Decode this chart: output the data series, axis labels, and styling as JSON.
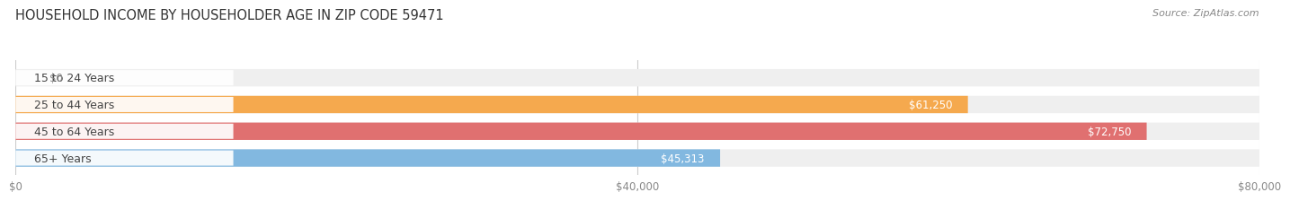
{
  "title": "HOUSEHOLD INCOME BY HOUSEHOLDER AGE IN ZIP CODE 59471",
  "source": "Source: ZipAtlas.com",
  "categories": [
    "15 to 24 Years",
    "25 to 44 Years",
    "45 to 64 Years",
    "65+ Years"
  ],
  "values": [
    0,
    61250,
    72750,
    45313
  ],
  "bar_colors": [
    "#f4a0b0",
    "#f5a94e",
    "#e07070",
    "#82b8e0"
  ],
  "bar_bg_color": "#efefef",
  "xlim": [
    0,
    80000
  ],
  "xticks": [
    0,
    40000,
    80000
  ],
  "xtick_labels": [
    "$0",
    "$40,000",
    "$80,000"
  ],
  "value_labels": [
    "$0",
    "$61,250",
    "$72,750",
    "$45,313"
  ],
  "fig_width": 14.06,
  "fig_height": 2.33,
  "bg_color": "#ffffff",
  "bar_height": 0.65,
  "title_fontsize": 10.5,
  "source_fontsize": 8,
  "label_fontsize": 9,
  "value_fontsize": 8.5,
  "tick_fontsize": 8.5
}
